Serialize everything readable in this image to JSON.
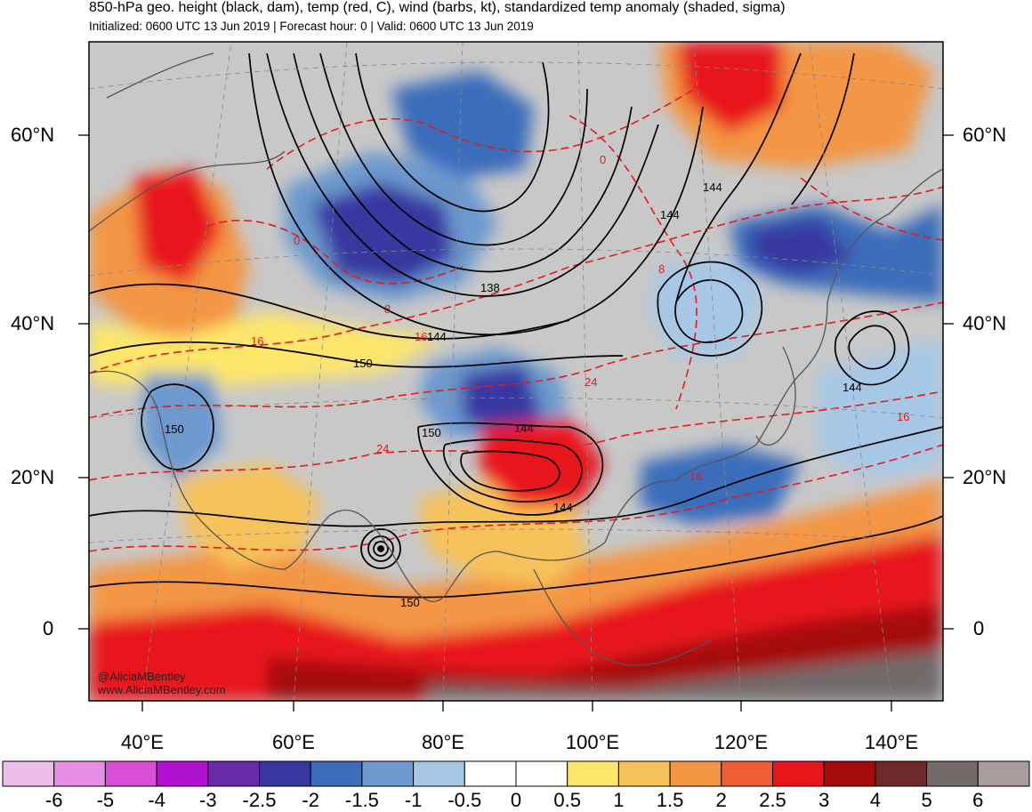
{
  "header": {
    "title": "850-hPa geo. height (black, dam), temp (red, C), wind (barbs, kt), standardized temp anomaly (shaded, sigma)",
    "subtitle": "Initialized: 0600 UTC 13 Jun 2019 | Forecast hour: 0 | Valid: 0600 UTC 13 Jun 2019"
  },
  "map": {
    "lat_labels": [
      "60°N",
      "40°N",
      "20°N",
      "0"
    ],
    "lon_labels": [
      "40°E",
      "60°E",
      "80°E",
      "100°E",
      "120°E",
      "140°E"
    ],
    "height_contour_labels": [
      "138",
      "144",
      "144",
      "144",
      "144",
      "144",
      "150",
      "150",
      "150",
      "150",
      "144"
    ],
    "temp_contour_labels": [
      "0",
      "0",
      "8",
      "8",
      "16",
      "16",
      "24",
      "24",
      "16",
      "16"
    ],
    "colors": {
      "ocean_gray": "#c8c8c8",
      "height_contour": "#000000",
      "temp_contour": "#e8191c",
      "coastline": "#555555"
    }
  },
  "credits": [
    "@AliciaMBentley",
    "www.AliciaMBentley.com"
  ],
  "colorbar": {
    "labels": [
      "-6",
      "-5",
      "-4",
      "-3",
      "-2.5",
      "-2",
      "-1.5",
      "-1",
      "-0.5",
      "0",
      "0.5",
      "1",
      "1.5",
      "2",
      "2.5",
      "3",
      "4",
      "5",
      "6"
    ],
    "colors": [
      "#ebbde8",
      "#e58ee4",
      "#d74fd6",
      "#b010cf",
      "#6a2aaa",
      "#3737a0",
      "#3b6dbb",
      "#6c99ce",
      "#a6c8e6",
      "#ffffff",
      "#ffffff",
      "#fde66a",
      "#f6c25a",
      "#f39644",
      "#ee5d36",
      "#e8151a",
      "#a50b0b",
      "#6e2a2a",
      "#736a6a",
      "#a89c9c"
    ]
  }
}
